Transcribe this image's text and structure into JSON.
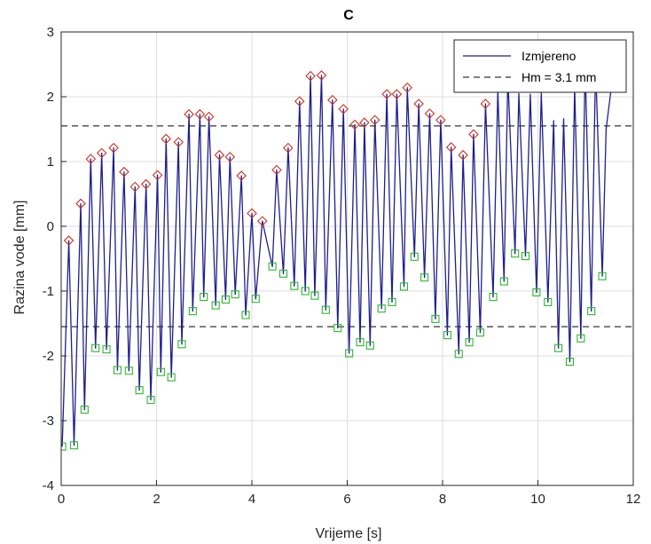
{
  "chart_data": {
    "type": "line",
    "title": "C",
    "xlabel": "Vrijeme [s]",
    "ylabel": "Razina vode [mm]",
    "xlim": [
      0,
      12
    ],
    "ylim": [
      -4,
      3
    ],
    "xticks": [
      0,
      2,
      4,
      6,
      8,
      10,
      12
    ],
    "yticks": [
      -4,
      -3,
      -2,
      -1,
      0,
      1,
      2,
      3
    ],
    "grid": true,
    "legend_position": "top-right",
    "colors": {
      "measured": "#1f1f8c",
      "crest_marker": "#cc3322",
      "trough_marker": "#2db82d",
      "hm_line": "#333333"
    },
    "series": [
      {
        "name": "Izmjereno",
        "style": "solid",
        "x": [
          0.02,
          0.16,
          0.27,
          0.41,
          0.49,
          0.62,
          0.72,
          0.85,
          0.95,
          1.1,
          1.18,
          1.32,
          1.42,
          1.55,
          1.64,
          1.78,
          1.88,
          2.02,
          2.09,
          2.2,
          2.31,
          2.46,
          2.53,
          2.68,
          2.76,
          2.91,
          2.99,
          3.1,
          3.24,
          3.32,
          3.45,
          3.54,
          3.65,
          3.78,
          3.87,
          4.0,
          4.08,
          4.22,
          4.43,
          4.52,
          4.66,
          4.76,
          4.89,
          5.0,
          5.12,
          5.23,
          5.32,
          5.46,
          5.55,
          5.69,
          5.8,
          5.92,
          6.04,
          6.16,
          6.27,
          6.36,
          6.48,
          6.58,
          6.72,
          6.83,
          6.94,
          7.04,
          7.19,
          7.26,
          7.41,
          7.5,
          7.62,
          7.73,
          7.85,
          7.96,
          8.1,
          8.18,
          8.34,
          8.43,
          8.56,
          8.65,
          8.79,
          8.9,
          9.06,
          9.16,
          9.29,
          9.37,
          9.52,
          9.6,
          9.74,
          9.84,
          9.97,
          10.07,
          10.21,
          10.33,
          10.43,
          10.54,
          10.67,
          10.77,
          10.9,
          10.99,
          11.12,
          11.21,
          11.35,
          11.43,
          11.55
        ],
        "y": [
          -3.4,
          -0.22,
          -3.38,
          0.35,
          -2.83,
          1.04,
          -1.88,
          1.13,
          -1.9,
          1.21,
          -2.22,
          0.84,
          -2.23,
          0.61,
          -2.53,
          0.65,
          -2.68,
          0.79,
          -2.25,
          1.35,
          -2.33,
          1.3,
          -1.82,
          1.73,
          -1.31,
          1.73,
          -1.09,
          1.69,
          -1.22,
          1.1,
          -1.13,
          1.07,
          -1.05,
          0.78,
          -1.37,
          0.2,
          -1.12,
          0.08,
          -0.62,
          0.87,
          -0.73,
          1.21,
          -0.92,
          1.93,
          -1.0,
          2.32,
          -1.07,
          2.33,
          -1.29,
          1.95,
          -1.57,
          1.81,
          -1.96,
          1.57,
          -1.79,
          1.6,
          -1.84,
          1.64,
          -1.27,
          2.04,
          -1.17,
          2.04,
          -0.93,
          2.14,
          -0.47,
          1.89,
          -0.79,
          1.74,
          -1.43,
          1.64,
          -1.68,
          1.22,
          -1.97,
          1.1,
          -1.79,
          1.42,
          -1.64,
          1.89,
          -1.09,
          2.1,
          -0.85,
          2.3,
          -0.42,
          2.05,
          -0.46,
          2.04,
          -1.02,
          2.06,
          -1.17,
          1.63,
          -1.88,
          1.66,
          -2.09,
          2.15,
          -1.73,
          2.5,
          -1.31,
          2.5,
          -0.77,
          1.5,
          2.2
        ]
      },
      {
        "name": "Hm = 3.1 mm",
        "style": "dashed",
        "y_levels": [
          1.55,
          -1.55
        ]
      }
    ],
    "crests": [
      [
        0.16,
        -0.22
      ],
      [
        0.41,
        0.35
      ],
      [
        0.62,
        1.04
      ],
      [
        0.85,
        1.13
      ],
      [
        1.1,
        1.21
      ],
      [
        1.32,
        0.84
      ],
      [
        1.55,
        0.61
      ],
      [
        1.78,
        0.65
      ],
      [
        2.02,
        0.79
      ],
      [
        2.2,
        1.35
      ],
      [
        2.46,
        1.3
      ],
      [
        2.68,
        1.73
      ],
      [
        2.91,
        1.73
      ],
      [
        3.1,
        1.69
      ],
      [
        3.32,
        1.1
      ],
      [
        3.54,
        1.07
      ],
      [
        3.78,
        0.78
      ],
      [
        4.0,
        0.2
      ],
      [
        4.22,
        0.08
      ],
      [
        4.52,
        0.87
      ],
      [
        4.76,
        1.21
      ],
      [
        5.0,
        1.93
      ],
      [
        5.23,
        2.32
      ],
      [
        5.46,
        2.33
      ],
      [
        5.69,
        1.95
      ],
      [
        5.92,
        1.81
      ],
      [
        6.16,
        1.57
      ],
      [
        6.36,
        1.6
      ],
      [
        6.58,
        1.64
      ],
      [
        6.83,
        2.04
      ],
      [
        7.04,
        2.04
      ],
      [
        7.26,
        2.14
      ],
      [
        7.5,
        1.89
      ],
      [
        7.73,
        1.74
      ],
      [
        7.96,
        1.64
      ],
      [
        8.18,
        1.22
      ],
      [
        8.43,
        1.1
      ],
      [
        8.65,
        1.42
      ],
      [
        8.9,
        1.89
      ]
    ],
    "troughs": [
      [
        0.02,
        -3.4
      ],
      [
        0.27,
        -3.38
      ],
      [
        0.49,
        -2.83
      ],
      [
        0.72,
        -1.88
      ],
      [
        0.95,
        -1.9
      ],
      [
        1.18,
        -2.22
      ],
      [
        1.42,
        -2.23
      ],
      [
        1.64,
        -2.53
      ],
      [
        1.88,
        -2.68
      ],
      [
        2.09,
        -2.25
      ],
      [
        2.31,
        -2.33
      ],
      [
        2.53,
        -1.82
      ],
      [
        2.76,
        -1.31
      ],
      [
        2.99,
        -1.09
      ],
      [
        3.24,
        -1.22
      ],
      [
        3.45,
        -1.13
      ],
      [
        3.65,
        -1.05
      ],
      [
        3.87,
        -1.37
      ],
      [
        4.08,
        -1.12
      ],
      [
        4.43,
        -0.62
      ],
      [
        4.66,
        -0.73
      ],
      [
        4.89,
        -0.92
      ],
      [
        5.12,
        -1.0
      ],
      [
        5.32,
        -1.07
      ],
      [
        5.55,
        -1.29
      ],
      [
        5.8,
        -1.57
      ],
      [
        6.04,
        -1.96
      ],
      [
        6.27,
        -1.79
      ],
      [
        6.48,
        -1.84
      ],
      [
        6.72,
        -1.27
      ],
      [
        6.94,
        -1.17
      ],
      [
        7.19,
        -0.93
      ],
      [
        7.41,
        -0.47
      ],
      [
        7.62,
        -0.79
      ],
      [
        7.85,
        -1.43
      ],
      [
        8.1,
        -1.68
      ],
      [
        8.34,
        -1.97
      ],
      [
        8.56,
        -1.79
      ],
      [
        8.79,
        -1.64
      ],
      [
        9.06,
        -1.09
      ],
      [
        9.29,
        -0.85
      ],
      [
        9.52,
        -0.42
      ],
      [
        9.74,
        -0.46
      ],
      [
        9.97,
        -1.02
      ],
      [
        10.21,
        -1.17
      ],
      [
        10.43,
        -1.88
      ],
      [
        10.67,
        -2.09
      ],
      [
        10.9,
        -1.73
      ],
      [
        11.12,
        -1.31
      ],
      [
        11.35,
        -0.77
      ]
    ]
  }
}
